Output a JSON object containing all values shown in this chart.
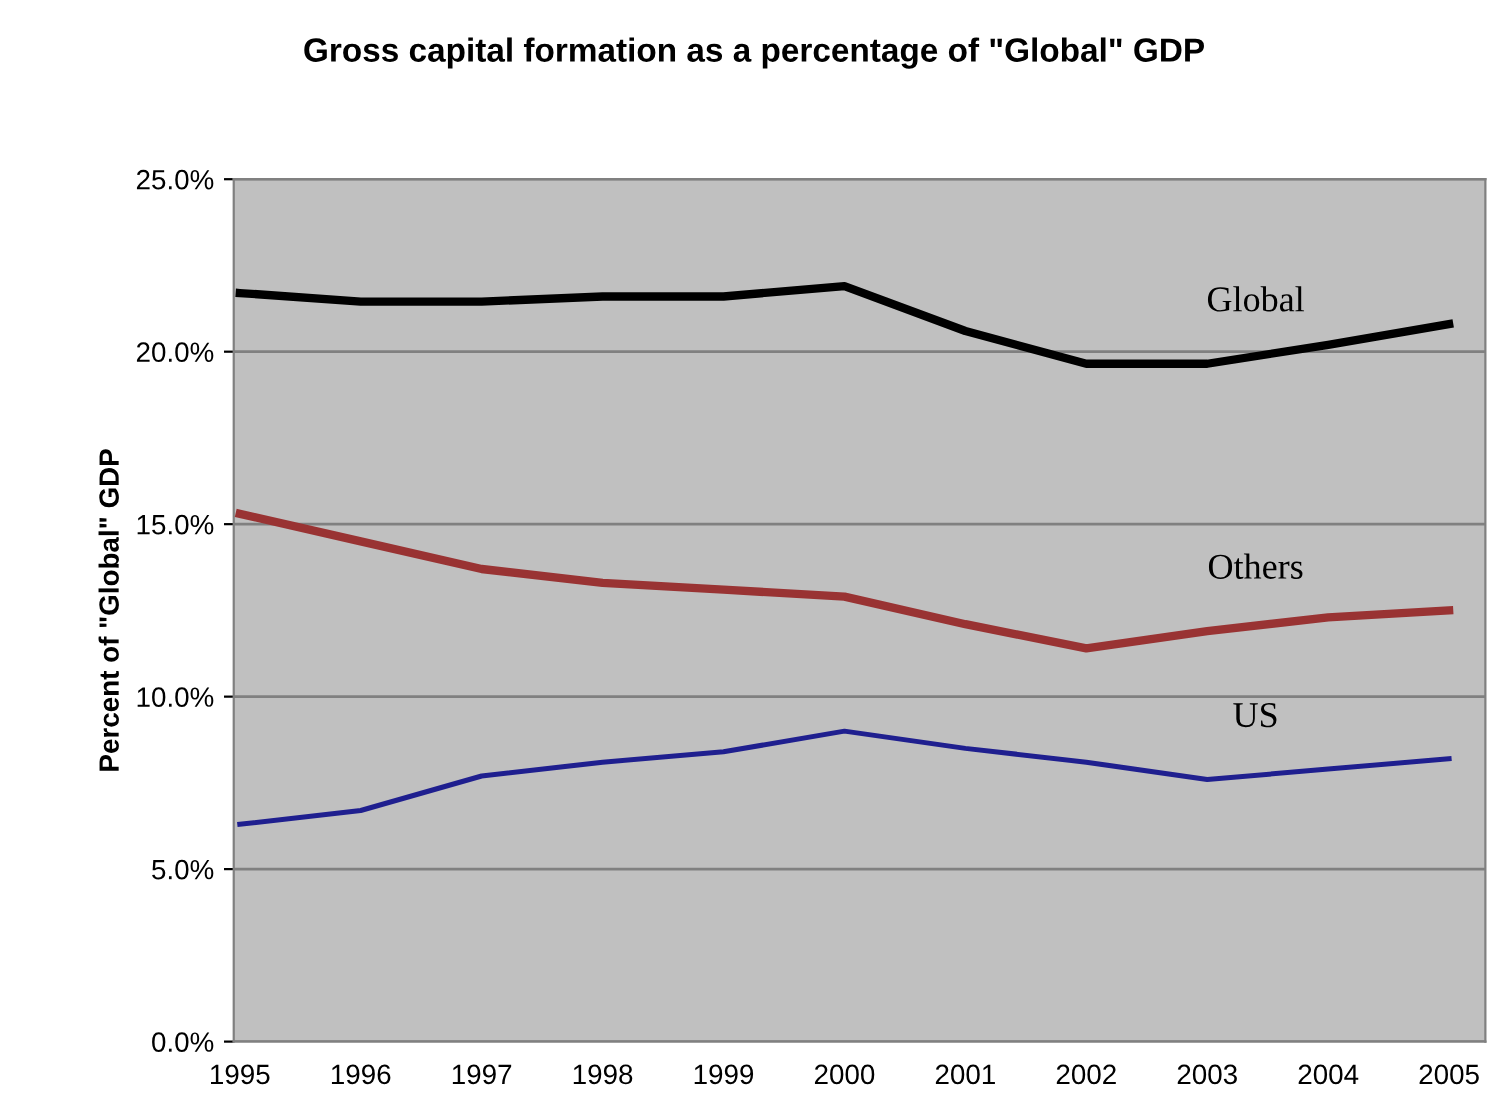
{
  "chart_data": {
    "type": "line",
    "title": "Gross capital formation as a percentage of \"Global\" GDP",
    "ylabel": "Percent of \"Global\" GDP",
    "categories": [
      "1995",
      "1996",
      "1997",
      "1998",
      "1999",
      "2000",
      "2001",
      "2002",
      "2003",
      "2004",
      "2005"
    ],
    "series": [
      {
        "name": "Global",
        "color": "#000000",
        "values": [
          21.7,
          21.45,
          21.45,
          21.6,
          21.6,
          21.9,
          20.6,
          19.65,
          19.65,
          20.2,
          20.8
        ]
      },
      {
        "name": "Others",
        "color": "#993333",
        "values": [
          15.3,
          14.5,
          13.7,
          13.3,
          13.1,
          12.9,
          12.1,
          11.4,
          11.9,
          12.3,
          12.5
        ]
      },
      {
        "name": "US",
        "color": "#1f1f8f",
        "values": [
          6.3,
          6.7,
          7.7,
          8.1,
          8.4,
          9.0,
          8.5,
          8.1,
          7.6,
          7.9,
          8.2
        ]
      }
    ],
    "ylim": [
      0,
      25
    ],
    "yticks": [
      {
        "value": 0,
        "label": "0.0%"
      },
      {
        "value": 5,
        "label": "5.0%"
      },
      {
        "value": 10,
        "label": "10.0%"
      },
      {
        "value": 15,
        "label": "15.0%"
      },
      {
        "value": 20,
        "label": "20.0%"
      },
      {
        "value": 25,
        "label": "25.0%"
      }
    ],
    "grid": "y",
    "legend": false,
    "marker": "none",
    "line_style": "solid"
  }
}
